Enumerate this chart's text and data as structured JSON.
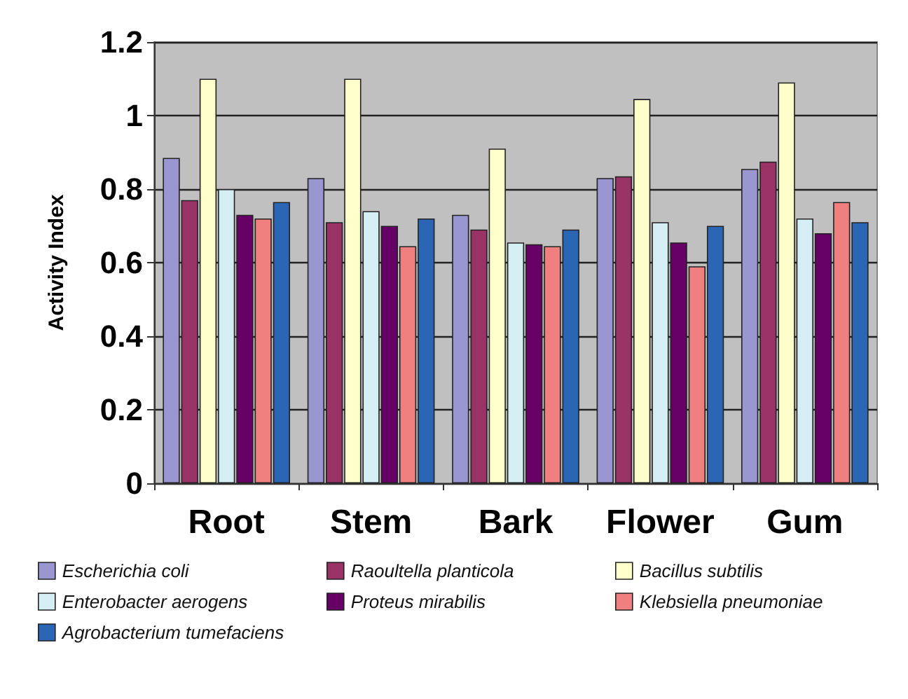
{
  "chart_data": {
    "type": "bar",
    "ylabel": "Activity Index",
    "categories": [
      "Root",
      "Stem",
      "Bark",
      "Flower",
      "Gum"
    ],
    "series": [
      {
        "name": "Escherichia coli",
        "color": "#9a96d0",
        "values": [
          0.885,
          0.83,
          0.73,
          0.83,
          0.855
        ]
      },
      {
        "name": "Raoultella planticola",
        "color": "#993366",
        "values": [
          0.77,
          0.71,
          0.69,
          0.835,
          0.875
        ]
      },
      {
        "name": "Bacillus subtilis",
        "color": "#ffffcc",
        "values": [
          1.1,
          1.1,
          0.91,
          1.045,
          1.09
        ]
      },
      {
        "name": "Enterobacter aerogens",
        "color": "#d4eef4",
        "values": [
          0.8,
          0.74,
          0.655,
          0.71,
          0.72
        ]
      },
      {
        "name": "Proteus mirabilis",
        "color": "#660066",
        "values": [
          0.73,
          0.7,
          0.65,
          0.655,
          0.68
        ]
      },
      {
        "name": "Klebsiella pneumoniae",
        "color": "#f08080",
        "values": [
          0.72,
          0.645,
          0.645,
          0.59,
          0.765
        ]
      },
      {
        "name": "Agrobacterium tumefaciens",
        "color": "#2a66b4",
        "values": [
          0.765,
          0.72,
          0.69,
          0.7,
          0.71
        ]
      }
    ],
    "ylim": [
      0,
      1.2
    ],
    "yticks": [
      0,
      0.2,
      0.4,
      0.6,
      0.8,
      1,
      1.2
    ],
    "grid": "y",
    "legend": "bottom"
  }
}
